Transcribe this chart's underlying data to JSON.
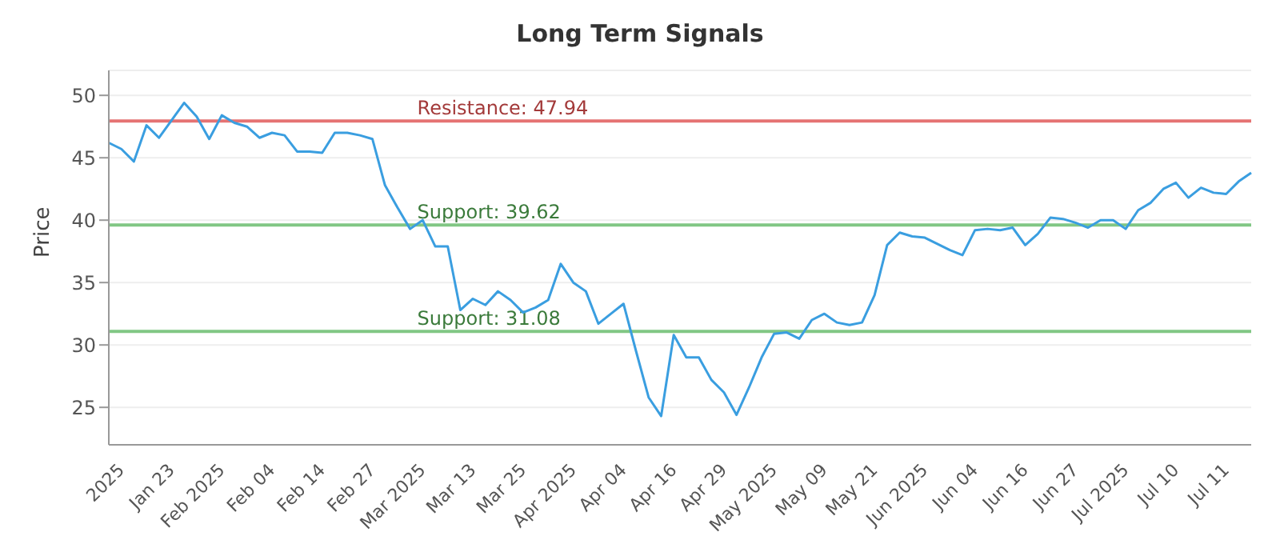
{
  "chart_data": {
    "type": "line",
    "title": "Long Term Signals",
    "ylabel": "Price",
    "categories": [
      null,
      "2025",
      null,
      null,
      null,
      "Jan 23",
      null,
      null,
      null,
      "Feb 2025",
      null,
      null,
      null,
      "Feb 04",
      null,
      null,
      null,
      "Feb 14",
      null,
      null,
      null,
      "Feb 27",
      null,
      null,
      null,
      "Mar 2025",
      null,
      null,
      null,
      "Mar 13",
      null,
      null,
      null,
      "Mar 25",
      null,
      null,
      null,
      "Apr 2025",
      null,
      null,
      null,
      "Apr 04",
      null,
      null,
      null,
      "Apr 16",
      null,
      null,
      null,
      "Apr 29",
      null,
      null,
      null,
      "May 2025",
      null,
      null,
      null,
      "May 09",
      null,
      null,
      null,
      "May 21",
      null,
      null,
      null,
      "Jun 2025",
      null,
      null,
      null,
      "Jun 04",
      null,
      null,
      null,
      "Jun 16",
      null,
      null,
      null,
      "Jun 27",
      null,
      null,
      null,
      "Jul 2025",
      null,
      null,
      null,
      "Jul 10",
      null,
      null,
      null,
      "Jul 11",
      null,
      null
    ],
    "series": [
      {
        "color": "#3a9ee0",
        "values": [
          46.2,
          45.7,
          44.7,
          47.6,
          46.6,
          48.0,
          49.4,
          48.3,
          46.5,
          48.4,
          47.8,
          47.5,
          46.6,
          47.0,
          46.8,
          45.5,
          45.5,
          45.4,
          47.0,
          47.0,
          46.8,
          46.5,
          42.8,
          41.0,
          39.3,
          40.0,
          37.9,
          37.9,
          32.8,
          33.7,
          33.2,
          34.3,
          33.6,
          32.6,
          33.0,
          33.6,
          36.5,
          35.0,
          34.3,
          31.7,
          32.5,
          33.3,
          29.5,
          25.8,
          24.3,
          30.8,
          29.0,
          29.0,
          27.2,
          26.2,
          24.4,
          26.6,
          29.0,
          30.9,
          31.0,
          30.5,
          32.0,
          32.5,
          31.8,
          31.6,
          31.8,
          34.0,
          38.0,
          39.0,
          38.7,
          38.6,
          38.1,
          37.6,
          37.2,
          39.2,
          39.3,
          39.2,
          39.4,
          38.0,
          38.9,
          40.2,
          40.1,
          39.8,
          39.4,
          40.0,
          40.0,
          39.3,
          40.8,
          41.4,
          42.5,
          43.0,
          41.8,
          42.6,
          42.2,
          42.1,
          43.1,
          43.8
        ]
      }
    ],
    "ylim": [
      22,
      52
    ],
    "yticks": [
      25,
      30,
      35,
      40,
      45,
      50
    ],
    "grid": "y",
    "marker": "none",
    "line_style": "solid",
    "ref_lines": [
      {
        "axis": "y",
        "value": 47.94,
        "label": "Resistance: 47.94",
        "color": "#e57373"
      },
      {
        "axis": "y",
        "value": 39.62,
        "label": "Support: 39.62",
        "color": "#81c784"
      },
      {
        "axis": "y",
        "value": 31.08,
        "label": "Support: 31.08",
        "color": "#81c784"
      }
    ]
  }
}
